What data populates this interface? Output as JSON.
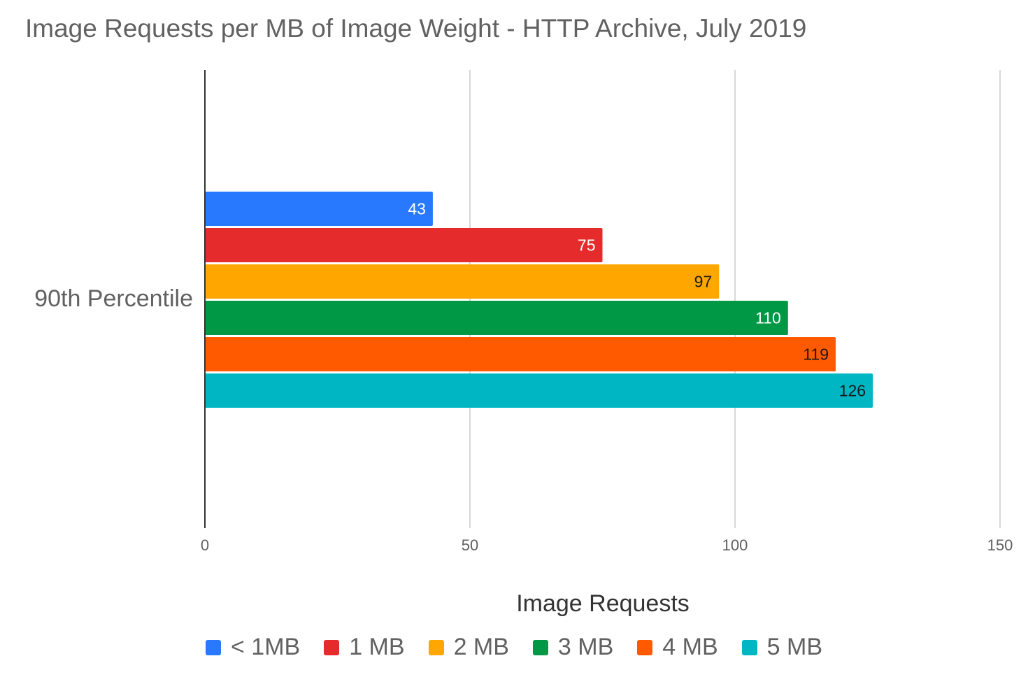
{
  "chart_data": {
    "type": "bar",
    "orientation": "horizontal",
    "title": "Image Requests per MB of Image Weight - HTTP Archive, July 2019",
    "xlabel": "Image Requests",
    "ylabel": "",
    "categories": [
      "90th Percentile"
    ],
    "xlim": [
      0,
      150
    ],
    "xticks": [
      "0",
      "50",
      "100",
      "150"
    ],
    "grid": true,
    "legend_position": "bottom",
    "series": [
      {
        "name": "< 1MB",
        "values": [
          43
        ],
        "color": "#2979ff",
        "label_color": "#ffffff"
      },
      {
        "name": "1 MB",
        "values": [
          75
        ],
        "color": "#e52b2b",
        "label_color": "#ffffff"
      },
      {
        "name": "2 MB",
        "values": [
          97
        ],
        "color": "#ffa600",
        "label_color": "#1a1a1a"
      },
      {
        "name": "3 MB",
        "values": [
          110
        ],
        "color": "#009845",
        "label_color": "#ffffff"
      },
      {
        "name": "4 MB",
        "values": [
          119
        ],
        "color": "#ff5a00",
        "label_color": "#1a1a1a"
      },
      {
        "name": "5 MB",
        "values": [
          126
        ],
        "color": "#00b6c3",
        "label_color": "#1a1a1a"
      }
    ]
  }
}
